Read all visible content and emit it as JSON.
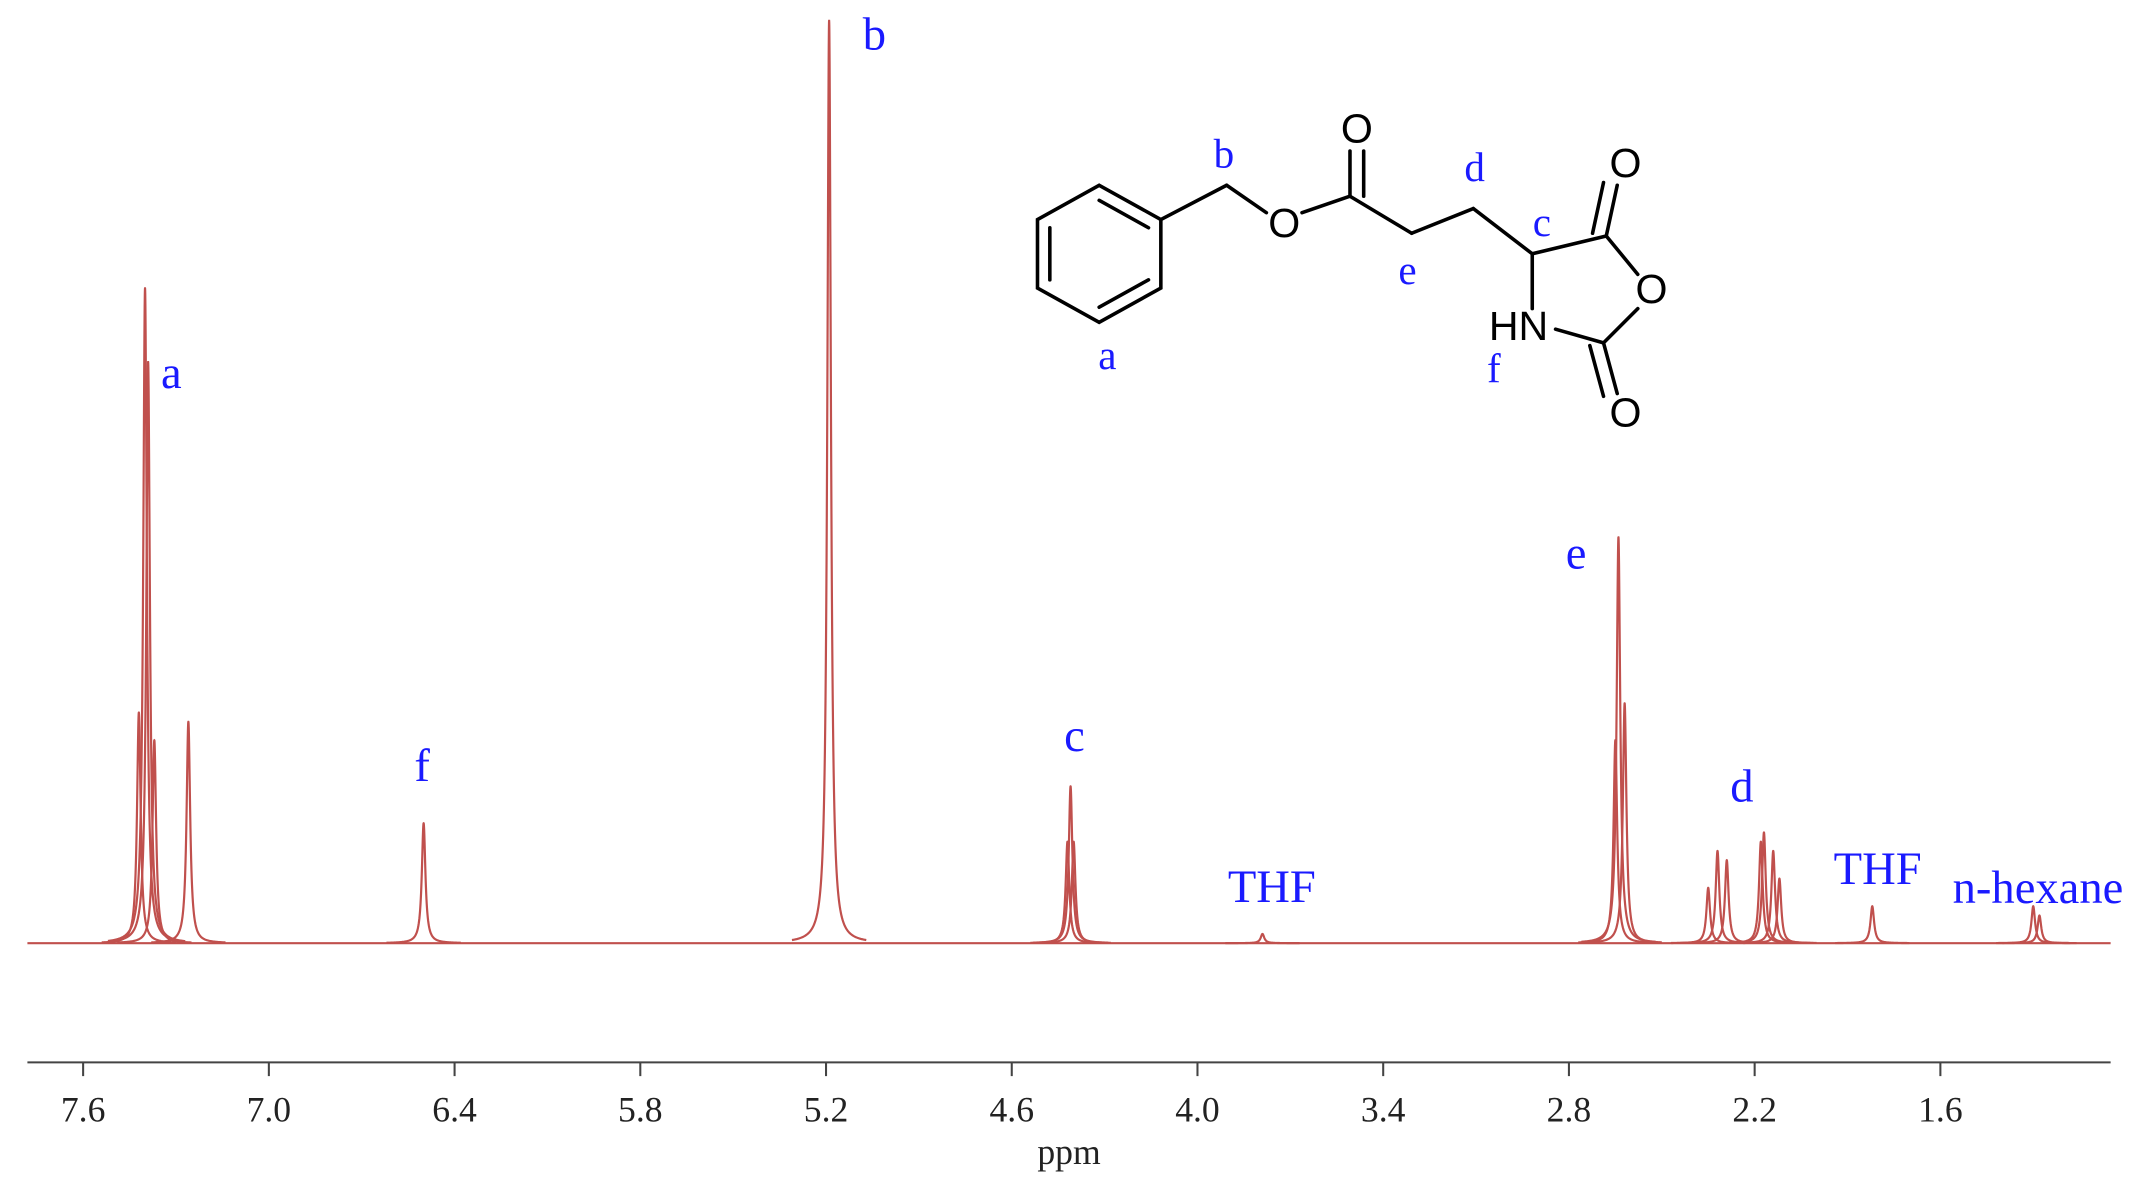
{
  "chart_data": {
    "type": "line",
    "xlabel": "ppm",
    "xlim": [
      7.78,
      1.05
    ],
    "xticks": [
      7.6,
      {
        "value": 7,
        "label": "7.0"
      },
      6.4,
      5.8,
      5.2,
      4.6,
      {
        "value": 4,
        "label": "4.0"
      },
      3.4,
      2.8,
      2.2,
      1.6
    ],
    "ylim": [
      0,
      100
    ],
    "color": "#c0504d",
    "x": [
      7.42,
      7.4,
      7.39,
      7.37,
      7.26,
      6.5,
      5.19,
      4.42,
      4.41,
      4.4,
      3.79,
      2.65,
      2.64,
      2.62,
      2.35,
      2.32,
      2.29,
      2.18,
      2.17,
      2.14,
      2.12,
      1.82,
      1.3,
      1.28
    ],
    "values": [
      25,
      71,
      63,
      22,
      24,
      13,
      100,
      11,
      17,
      11,
      1,
      22,
      44,
      26,
      6,
      10,
      9,
      11,
      12,
      10,
      7,
      4,
      4,
      3
    ],
    "annotations": [
      "a",
      "f",
      "b",
      "c",
      "THF",
      "e",
      "d",
      "THF",
      "n-hexane"
    ]
  },
  "structure": {
    "labels": [
      "a",
      "b",
      "c",
      "d",
      "e",
      "f"
    ],
    "atoms": [
      "O",
      "O",
      "O",
      "O",
      "O",
      "HN"
    ]
  }
}
